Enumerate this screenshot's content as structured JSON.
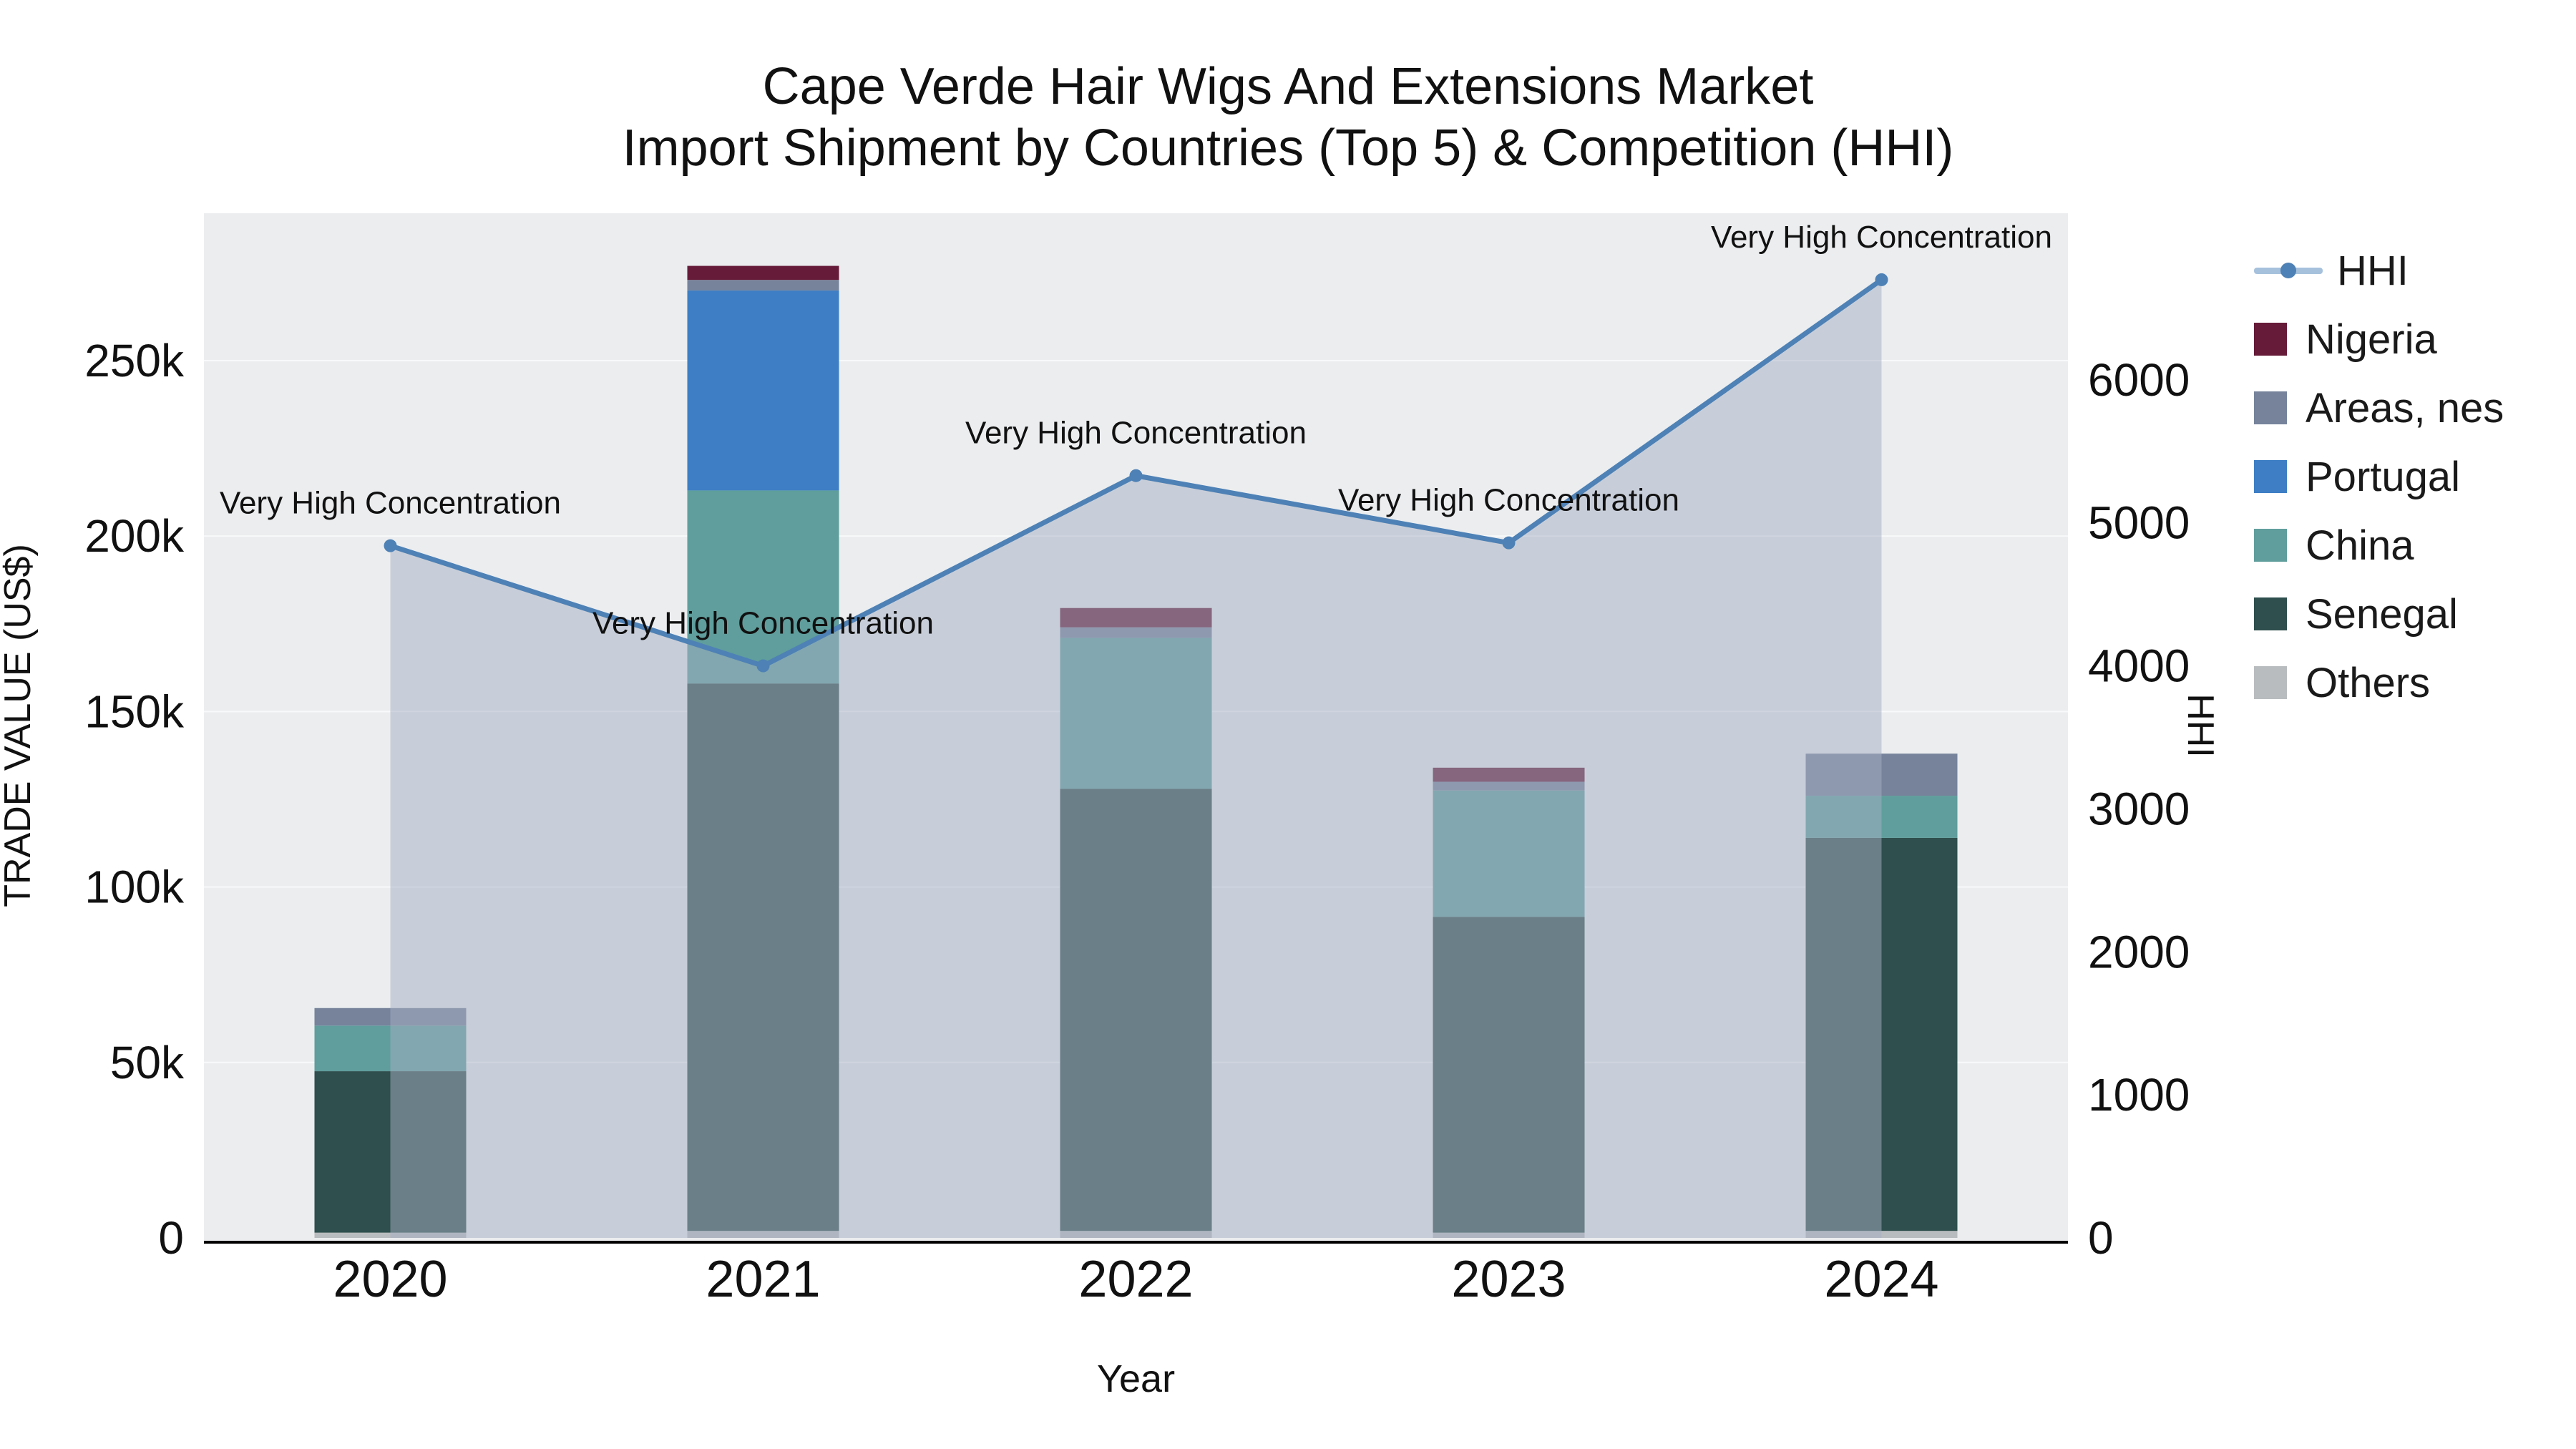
{
  "title": {
    "line1": "Cape Verde Hair Wigs And Extensions Market",
    "line2": "Import Shipment by Countries (Top 5) & Competition (HHI)"
  },
  "chart_data": {
    "type": "combo: stacked-bar + area-line (dual axis)",
    "x": [
      "2020",
      "2021",
      "2022",
      "2023",
      "2024"
    ],
    "xlabel": "Year",
    "ylabel_left": "TRADE VALUE (US$)",
    "ylabel_right": "HHI",
    "ylim_left": [
      0,
      292000
    ],
    "ylim_right": [
      0,
      7165
    ],
    "yticks_left": [
      {
        "value": 0,
        "label": "0"
      },
      {
        "value": 50000,
        "label": "50k"
      },
      {
        "value": 100000,
        "label": "100k"
      },
      {
        "value": 150000,
        "label": "150k"
      },
      {
        "value": 200000,
        "label": "200k"
      },
      {
        "value": 250000,
        "label": "250k"
      }
    ],
    "yticks_right": [
      {
        "value": 0,
        "label": "0"
      },
      {
        "value": 1000,
        "label": "1000"
      },
      {
        "value": 2000,
        "label": "2000"
      },
      {
        "value": 3000,
        "label": "3000"
      },
      {
        "value": 4000,
        "label": "4000"
      },
      {
        "value": 5000,
        "label": "5000"
      },
      {
        "value": 6000,
        "label": "6000"
      }
    ],
    "grid": true,
    "plot_bg": "#ebedef",
    "grid_color": "#f8f9fa",
    "axis_line_color": "#000000",
    "series": [
      {
        "name": "Others",
        "color": "#b9bcbe",
        "values": [
          1500,
          2000,
          2000,
          1500,
          2000
        ]
      },
      {
        "name": "Senegal",
        "color": "#2e4f4d",
        "values": [
          46000,
          156000,
          126000,
          90000,
          112000
        ]
      },
      {
        "name": "China",
        "color": "#5f9e9c",
        "values": [
          13000,
          55000,
          43000,
          36000,
          12000
        ]
      },
      {
        "name": "Portugal",
        "color": "#3d7ec4",
        "values": [
          0,
          57000,
          0,
          0,
          0
        ]
      },
      {
        "name": "Areas, nes",
        "color": "#76839b",
        "values": [
          5000,
          3000,
          3000,
          2500,
          12000
        ]
      },
      {
        "name": "Nigeria",
        "color": "#661b38",
        "values": [
          0,
          4000,
          5500,
          4000,
          0
        ]
      }
    ],
    "hhi": {
      "name": "HHI",
      "line_color": "#4e81b5",
      "area_color": "rgba(165,176,195,0.5)",
      "values": [
        4840,
        4000,
        5330,
        4860,
        6700
      ],
      "annotations": [
        "Very High Concentration",
        "Very High Concentration",
        "Very High Concentration",
        "Very High Concentration",
        "Very High Concentration"
      ]
    }
  },
  "legend": {
    "items": [
      {
        "label": "HHI",
        "kind": "line",
        "color": "#4e81b5",
        "line_color": "#a6c1dc"
      },
      {
        "label": "Nigeria",
        "kind": "swatch",
        "color": "#661b38"
      },
      {
        "label": "Areas, nes",
        "kind": "swatch",
        "color": "#76839b"
      },
      {
        "label": "Portugal",
        "kind": "swatch",
        "color": "#3d7ec4"
      },
      {
        "label": "China",
        "kind": "swatch",
        "color": "#5f9e9c"
      },
      {
        "label": "Senegal",
        "kind": "swatch",
        "color": "#2e4f4d"
      },
      {
        "label": "Others",
        "kind": "swatch",
        "color": "#b9bcbe"
      }
    ]
  }
}
